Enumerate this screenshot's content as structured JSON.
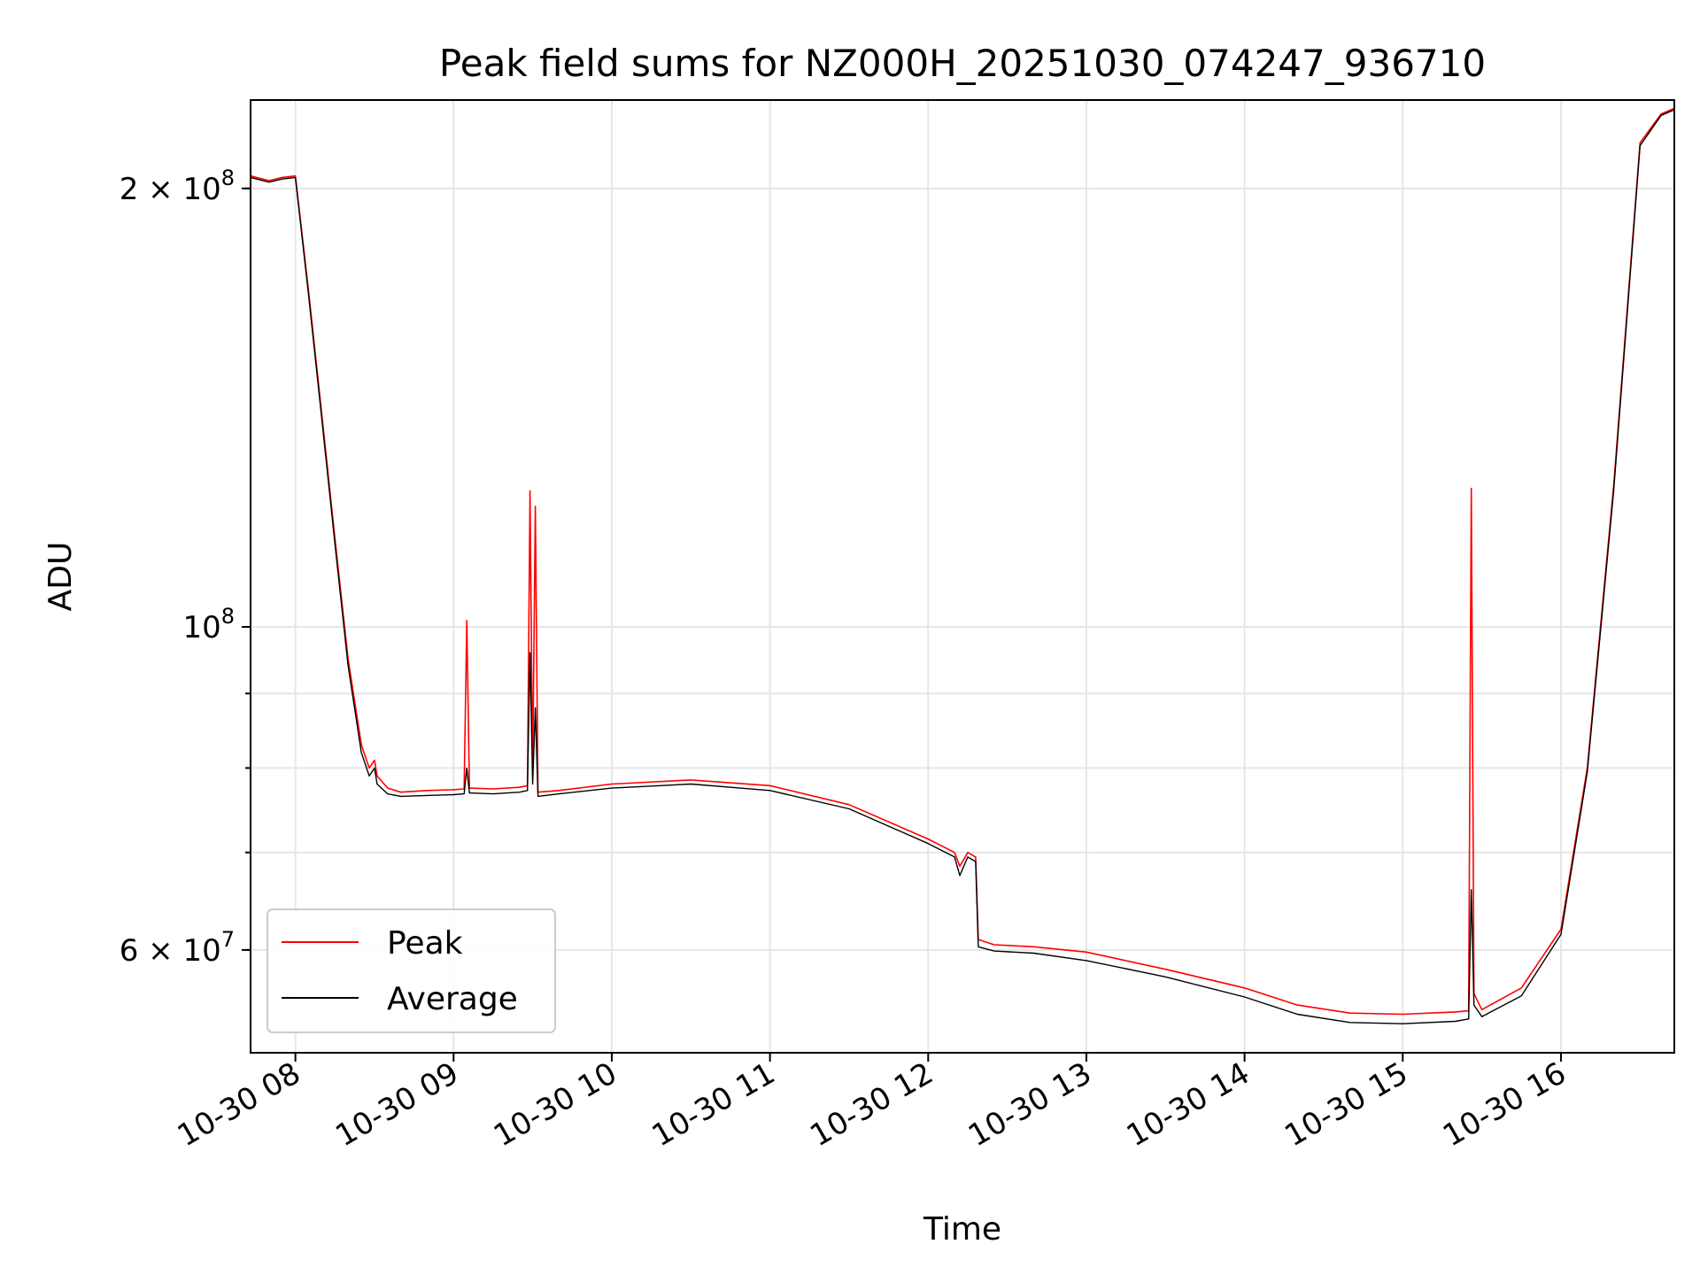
{
  "chart_data": {
    "type": "line",
    "title": "Peak field sums for NZ000H_20251030_074247_936710",
    "xlabel": "Time",
    "ylabel": "ADU",
    "yscale": "log",
    "ylim": [
      51000000,
      230000000
    ],
    "xlim": [
      "10-30 07:43",
      "10-30 16:43"
    ],
    "x_ticks": [
      {
        "t": "10-30 08:00",
        "label": "10-30 08"
      },
      {
        "t": "10-30 09:00",
        "label": "10-30 09"
      },
      {
        "t": "10-30 10:00",
        "label": "10-30 10"
      },
      {
        "t": "10-30 11:00",
        "label": "10-30 11"
      },
      {
        "t": "10-30 12:00",
        "label": "10-30 12"
      },
      {
        "t": "10-30 13:00",
        "label": "10-30 13"
      },
      {
        "t": "10-30 14:00",
        "label": "10-30 14"
      },
      {
        "t": "10-30 15:00",
        "label": "10-30 15"
      },
      {
        "t": "10-30 16:00",
        "label": "10-30 16"
      }
    ],
    "y_ticks": [
      {
        "value": 200000000,
        "label": "2 × 10",
        "exp": "8"
      },
      {
        "value": 100000000,
        "label": "10",
        "exp": "8"
      },
      {
        "value": 60000000,
        "label": "6 × 10",
        "exp": "7"
      }
    ],
    "y_minor_ticks": [
      200000000,
      100000000,
      90000000,
      80000000,
      70000000,
      60000000
    ],
    "grid": true,
    "legend_position": "lower-left",
    "series": [
      {
        "name": "Peak",
        "color": "#ff0000",
        "points": [
          [
            "10-30 07:43",
            204000000
          ],
          [
            "10-30 07:50",
            202500000
          ],
          [
            "10-30 07:55",
            203500000
          ],
          [
            "10-30 08:00",
            204000000
          ],
          [
            "10-30 08:05",
            170000000
          ],
          [
            "10-30 08:10",
            140000000
          ],
          [
            "10-30 08:15",
            115000000
          ],
          [
            "10-30 08:20",
            95000000
          ],
          [
            "10-30 08:25",
            83000000
          ],
          [
            "10-30 08:28",
            80000000
          ],
          [
            "10-30 08:30",
            81000000
          ],
          [
            "10-30 08:31",
            79000000
          ],
          [
            "10-30 08:35",
            77500000
          ],
          [
            "10-30 08:40",
            77000000
          ],
          [
            "10-30 08:50",
            77200000
          ],
          [
            "10-30 09:00",
            77300000
          ],
          [
            "10-30 09:04",
            77400000
          ],
          [
            "10-30 09:05",
            101000000
          ],
          [
            "10-30 09:06",
            77500000
          ],
          [
            "10-30 09:15",
            77400000
          ],
          [
            "10-30 09:25",
            77600000
          ],
          [
            "10-30 09:28",
            77800000
          ],
          [
            "10-30 09:29",
            124000000
          ],
          [
            "10-30 09:30",
            79000000
          ],
          [
            "10-30 09:31",
            121000000
          ],
          [
            "10-30 09:32",
            77000000
          ],
          [
            "10-30 09:40",
            77200000
          ],
          [
            "10-30 10:00",
            78000000
          ],
          [
            "10-30 10:30",
            78500000
          ],
          [
            "10-30 11:00",
            77800000
          ],
          [
            "10-30 11:30",
            75500000
          ],
          [
            "10-30 12:00",
            71500000
          ],
          [
            "10-30 12:10",
            70000000
          ],
          [
            "10-30 12:12",
            68500000
          ],
          [
            "10-30 12:15",
            70000000
          ],
          [
            "10-30 12:18",
            69500000
          ],
          [
            "10-30 12:19",
            61000000
          ],
          [
            "10-30 12:25",
            60500000
          ],
          [
            "10-30 12:40",
            60300000
          ],
          [
            "10-30 13:00",
            59800000
          ],
          [
            "10-30 13:30",
            58200000
          ],
          [
            "10-30 14:00",
            56500000
          ],
          [
            "10-30 14:20",
            55000000
          ],
          [
            "10-30 14:40",
            54300000
          ],
          [
            "10-30 15:00",
            54200000
          ],
          [
            "10-30 15:20",
            54400000
          ],
          [
            "10-30 15:25",
            54500000
          ],
          [
            "10-30 15:26",
            124500000
          ],
          [
            "10-30 15:27",
            56000000
          ],
          [
            "10-30 15:30",
            54600000
          ],
          [
            "10-30 15:45",
            56500000
          ],
          [
            "10-30 16:00",
            62000000
          ],
          [
            "10-30 16:10",
            80000000
          ],
          [
            "10-30 16:20",
            125000000
          ],
          [
            "10-30 16:30",
            215000000
          ],
          [
            "10-30 16:38",
            225000000
          ],
          [
            "10-30 16:43",
            227000000
          ]
        ]
      },
      {
        "name": "Average",
        "color": "#000000",
        "points": [
          [
            "10-30 07:43",
            203500000
          ],
          [
            "10-30 07:50",
            202000000
          ],
          [
            "10-30 07:55",
            203000000
          ],
          [
            "10-30 08:00",
            203500000
          ],
          [
            "10-30 08:05",
            169000000
          ],
          [
            "10-30 08:10",
            139000000
          ],
          [
            "10-30 08:15",
            114000000
          ],
          [
            "10-30 08:20",
            94000000
          ],
          [
            "10-30 08:25",
            82000000
          ],
          [
            "10-30 08:28",
            79000000
          ],
          [
            "10-30 08:30",
            80000000
          ],
          [
            "10-30 08:31",
            78000000
          ],
          [
            "10-30 08:35",
            76800000
          ],
          [
            "10-30 08:40",
            76500000
          ],
          [
            "10-30 08:50",
            76600000
          ],
          [
            "10-30 09:00",
            76700000
          ],
          [
            "10-30 09:04",
            76800000
          ],
          [
            "10-30 09:05",
            80000000
          ],
          [
            "10-30 09:06",
            76900000
          ],
          [
            "10-30 09:15",
            76800000
          ],
          [
            "10-30 09:25",
            77000000
          ],
          [
            "10-30 09:28",
            77200000
          ],
          [
            "10-30 09:29",
            96000000
          ],
          [
            "10-30 09:30",
            78000000
          ],
          [
            "10-30 09:31",
            88000000
          ],
          [
            "10-30 09:32",
            76500000
          ],
          [
            "10-30 09:40",
            76800000
          ],
          [
            "10-30 10:00",
            77500000
          ],
          [
            "10-30 10:30",
            78000000
          ],
          [
            "10-30 11:00",
            77200000
          ],
          [
            "10-30 11:30",
            75000000
          ],
          [
            "10-30 12:00",
            71000000
          ],
          [
            "10-30 12:10",
            69500000
          ],
          [
            "10-30 12:12",
            67500000
          ],
          [
            "10-30 12:15",
            69500000
          ],
          [
            "10-30 12:18",
            69000000
          ],
          [
            "10-30 12:19",
            60300000
          ],
          [
            "10-30 12:25",
            59900000
          ],
          [
            "10-30 12:40",
            59700000
          ],
          [
            "10-30 13:00",
            59000000
          ],
          [
            "10-30 13:30",
            57500000
          ],
          [
            "10-30 14:00",
            55700000
          ],
          [
            "10-30 14:20",
            54200000
          ],
          [
            "10-30 14:40",
            53500000
          ],
          [
            "10-30 15:00",
            53400000
          ],
          [
            "10-30 15:20",
            53600000
          ],
          [
            "10-30 15:25",
            53800000
          ],
          [
            "10-30 15:26",
            66000000
          ],
          [
            "10-30 15:27",
            55000000
          ],
          [
            "10-30 15:30",
            54000000
          ],
          [
            "10-30 15:45",
            55800000
          ],
          [
            "10-30 16:00",
            61500000
          ],
          [
            "10-30 16:10",
            79500000
          ],
          [
            "10-30 16:20",
            124000000
          ],
          [
            "10-30 16:30",
            214000000
          ],
          [
            "10-30 16:38",
            224500000
          ],
          [
            "10-30 16:43",
            226500000
          ]
        ]
      }
    ]
  }
}
